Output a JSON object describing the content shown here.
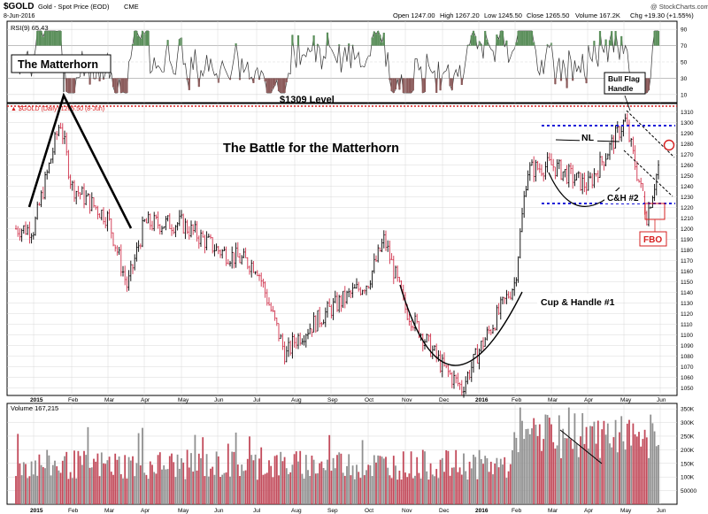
{
  "header": {
    "symbol": "$GOLD",
    "name": "Gold - Spot Price (EOD)",
    "exchange": "CME",
    "date": "8-Jun-2016",
    "watermark": "@ StockCharts.com",
    "open": "Open 1247.00",
    "high": "High 1267.20",
    "low": "Low 1245.50",
    "close": "Close 1265.50",
    "volume": "Volume 167.2K",
    "chg": "Chg +19.30 (+1.55%)"
  },
  "rsi": {
    "label": "RSI(9) 65.43",
    "ticks": [
      "90",
      "70",
      "50",
      "30",
      "10"
    ],
    "levels": [
      90,
      70,
      50,
      30,
      10
    ]
  },
  "price_panel": {
    "overlay_label": "▲ $GOLD (Daily) 1265.50 (8-Jun)",
    "ticks": [
      1310,
      1300,
      1290,
      1280,
      1270,
      1260,
      1250,
      1240,
      1230,
      1220,
      1210,
      1200,
      1190,
      1180,
      1170,
      1160,
      1150,
      1140,
      1130,
      1120,
      1110,
      1100,
      1090,
      1080,
      1070,
      1060,
      1050
    ],
    "ylim": [
      1043,
      1318
    ]
  },
  "volume_panel": {
    "label": "Volume 167,215",
    "ticks": [
      "350K",
      "300K",
      "250K",
      "200K",
      "150K",
      "100K",
      "50000"
    ],
    "tick_values": [
      350000,
      300000,
      250000,
      200000,
      150000,
      100000,
      50000
    ],
    "ylim": [
      0,
      370000
    ]
  },
  "x_axis": {
    "labels": [
      "2015",
      "Feb",
      "Mar",
      "Apr",
      "May",
      "Jun",
      "Jul",
      "Aug",
      "Sep",
      "Oct",
      "Nov",
      "Dec",
      "2016",
      "Feb",
      "Mar",
      "Apr",
      "May",
      "Jun"
    ],
    "bold": [
      "2015",
      "2016"
    ]
  },
  "annotations": {
    "matterhorn": "The Matterhorn",
    "level_1309": "$1309 Level",
    "battle": "The Battle for the Matterhorn",
    "bull_flag": [
      "Bull Flag",
      "Handle"
    ],
    "nl": "NL",
    "ch2": "C&H #2",
    "cup_handle_1": "Cup & Handle #1",
    "fbo": "FBO"
  },
  "colors": {
    "up_bar": "#000000",
    "down_bar": "#d0304a",
    "level_line": "#d62020",
    "flag_line": "#1818d8",
    "grid": "#d8d8d8",
    "rsi_high": "#5b8f5b",
    "rsi_low": "#8b5a5a",
    "vol_up": "#909090",
    "vol_down": "#c24a5a"
  },
  "chart_data": {
    "type": "line",
    "title": "$GOLD Gold - Spot Price (EOD) CME",
    "xlabel": "",
    "ylabel": "",
    "ylim": [
      1043,
      1318
    ],
    "x": [
      "2015-01",
      "2015-01-22",
      "2015-02",
      "2015-03",
      "2015-03-17",
      "2015-04",
      "2015-05",
      "2015-06",
      "2015-07",
      "2015-07-24",
      "2015-08",
      "2015-09",
      "2015-10",
      "2015-10-14",
      "2015-11",
      "2015-12",
      "2015-12-17",
      "2016-01",
      "2016-02",
      "2016-02-11",
      "2016-03",
      "2016-04",
      "2016-05-02",
      "2016-05-20",
      "2016-06"
    ],
    "series": [
      {
        "name": "$GOLD (Daily)",
        "values": [
          1200,
          1302,
          1240,
          1210,
          1145,
          1205,
          1205,
          1180,
          1165,
          1080,
          1095,
          1125,
          1150,
          1190,
          1125,
          1070,
          1050,
          1085,
          1150,
          1255,
          1260,
          1240,
          1302,
          1212,
          1265.5
        ]
      }
    ],
    "level_line": 1309,
    "flag_lines": [
      1288,
      1211
    ]
  }
}
